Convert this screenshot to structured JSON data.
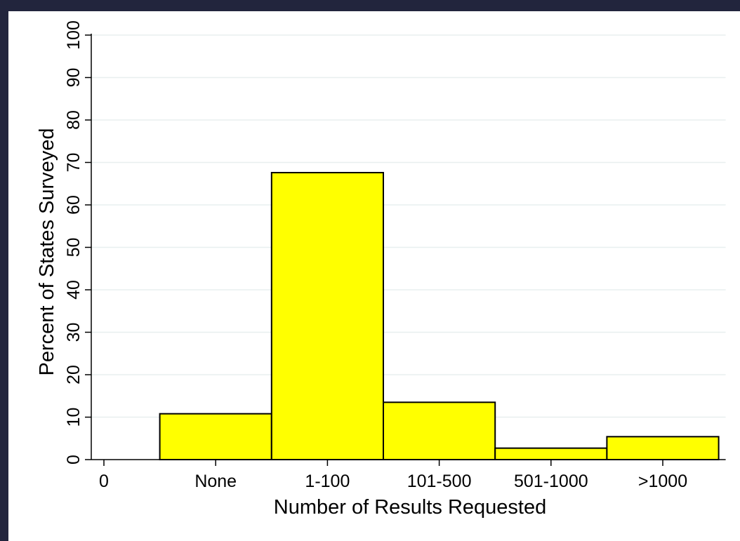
{
  "colors": {
    "page_border": "#22253d",
    "background": "#ffffff",
    "bar_fill": "#ffff00",
    "bar_stroke": "#000000",
    "grid": "#e8efef"
  },
  "chart_data": {
    "type": "bar",
    "title": "",
    "xlabel": "Number of Results Requested",
    "ylabel": "Percent of States Surveyed",
    "x_tick_labels": [
      "0",
      "None",
      "1-100",
      "101-500",
      "501-1000",
      ">1000"
    ],
    "categories": [
      "None",
      "1-100",
      "101-500",
      "501-1000",
      ">1000"
    ],
    "values": [
      10.8,
      67.6,
      13.5,
      2.7,
      5.4
    ],
    "ylim": [
      0,
      100
    ],
    "yticks": [
      0,
      10,
      20,
      30,
      40,
      50,
      60,
      70,
      80,
      90,
      100
    ],
    "grid": true,
    "legend": false
  }
}
